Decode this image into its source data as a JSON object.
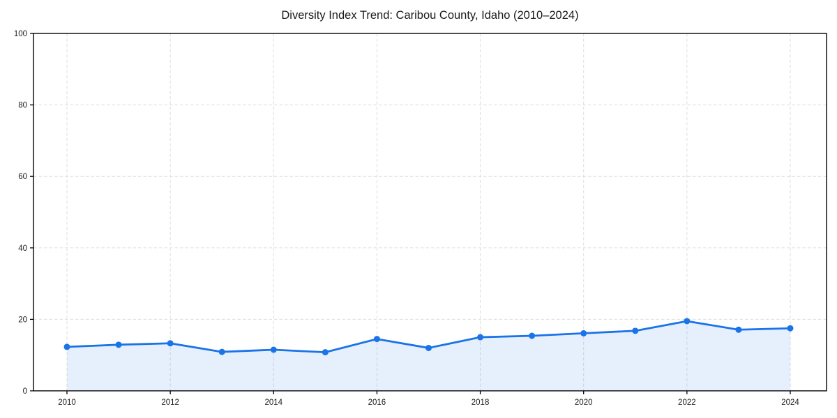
{
  "title": "Diversity Index Trend: Caribou County, Idaho (2010–2024)",
  "chart_data": {
    "type": "line",
    "title": "Diversity Index Trend: Caribou County, Idaho (2010–2024)",
    "x": [
      2010,
      2011,
      2012,
      2013,
      2014,
      2015,
      2016,
      2017,
      2018,
      2019,
      2020,
      2021,
      2022,
      2023,
      2024
    ],
    "series": [
      {
        "name": "Diversity Index",
        "values": [
          12.3,
          12.9,
          13.3,
          10.9,
          11.5,
          10.8,
          14.5,
          12.0,
          15.0,
          15.4,
          16.1,
          16.8,
          19.5,
          17.1,
          17.5
        ]
      }
    ],
    "xticks": [
      2010,
      2012,
      2014,
      2016,
      2018,
      2020,
      2022,
      2024
    ],
    "yticks": [
      0,
      20,
      40,
      60,
      80,
      100
    ],
    "ylim": [
      0,
      100
    ],
    "xlabel": "",
    "ylabel": "",
    "grid": true,
    "legend_position": "none",
    "marker": "circle",
    "area_fill": true,
    "colors": {
      "line": "#1a73e8",
      "marker": "#1a73e8",
      "fill": "rgba(26,115,232,0.11)",
      "grid": "#dedede",
      "spine": "#000000",
      "tick_label": "#1a1a1a",
      "title": "#1a1a1a",
      "background": "#ffffff"
    }
  }
}
